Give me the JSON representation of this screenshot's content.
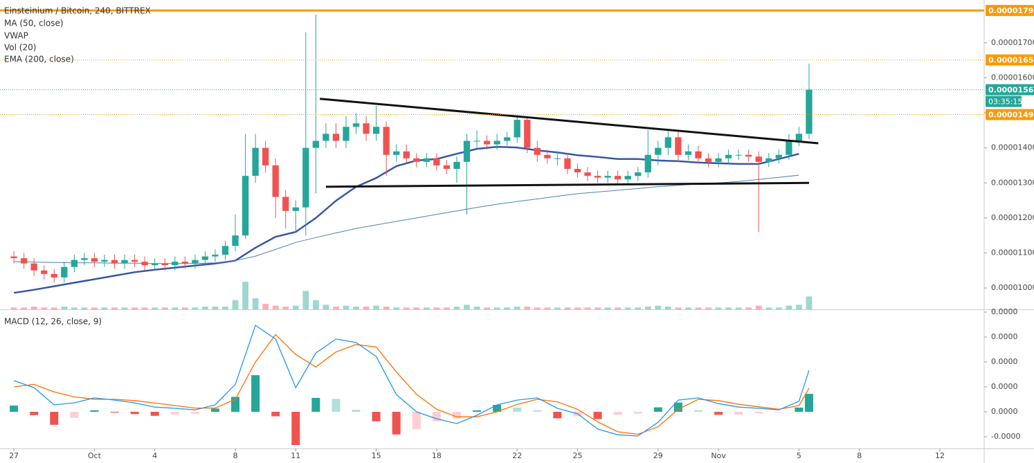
{
  "chart_data": [
    {
      "type": "candlestick",
      "title": "Einsteinium / Bitcoin, 240, BITTREX",
      "legend": [
        "MA (50, close)",
        "VWAP",
        "Vol (20)",
        "EMA (200, close)"
      ],
      "xlim": [
        -0.69,
        48.2
      ],
      "ylim": [
        9.39e-06,
        1.822e-05
      ],
      "yticks": [
        {
          "value": 1e-05,
          "label": "0.00001000"
        },
        {
          "value": 1.1e-05,
          "label": "0.00001100"
        },
        {
          "value": 1.2e-05,
          "label": "0.00001200"
        },
        {
          "value": 1.3e-05,
          "label": "0.00001300"
        },
        {
          "value": 1.4e-05,
          "label": "0.00001400"
        },
        {
          "value": 1.5e-05,
          "label": "0.00001500"
        },
        {
          "value": 1.6e-05,
          "label": "0.00001600"
        },
        {
          "value": 1.7e-05,
          "label": "0.00001700"
        }
      ],
      "up_color": "#26a69a",
      "down_color": "#ef5350",
      "x": [
        0,
        0.5,
        1,
        1.5,
        2,
        2.5,
        3,
        3.5,
        4,
        4.5,
        5,
        5.5,
        6,
        6.5,
        7,
        7.5,
        8,
        8.5,
        9,
        9.5,
        10,
        10.5,
        11,
        11.5,
        12,
        12.5,
        13,
        13.5,
        14,
        14.5,
        15,
        15.5,
        16,
        16.5,
        17,
        17.5,
        18,
        18.5,
        19,
        19.5,
        20,
        20.5,
        21,
        21.5,
        22,
        22.5,
        23,
        23.5,
        24,
        24.5,
        25,
        25.5,
        26,
        26.5,
        27,
        27.5,
        28,
        28.5,
        29,
        29.5,
        30,
        30.5,
        31,
        31.5,
        32,
        32.5,
        33,
        33.5,
        34,
        34.5,
        35,
        35.5,
        36,
        36.5,
        37,
        37.5,
        38,
        38.5,
        39,
        39.5
      ],
      "open": [
        1.09e-05,
        1.085e-05,
        1.07e-05,
        1.05e-05,
        1.04e-05,
        1.03e-05,
        1.06e-05,
        1.08e-05,
        1.085e-05,
        1.075e-05,
        1.08e-05,
        1.07e-05,
        1.08e-05,
        1.075e-05,
        1.065e-05,
        1.07e-05,
        1.065e-05,
        1.075e-05,
        1.07e-05,
        1.08e-05,
        1.09e-05,
        1.095e-05,
        1.12e-05,
        1.15e-05,
        1.32e-05,
        1.4e-05,
        1.35e-05,
        1.26e-05,
        1.22e-05,
        1.23e-05,
        1.4e-05,
        1.42e-05,
        1.44e-05,
        1.42e-05,
        1.46e-05,
        1.47e-05,
        1.44e-05,
        1.46e-05,
        1.38e-05,
        1.39e-05,
        1.37e-05,
        1.36e-05,
        1.37e-05,
        1.35e-05,
        1.34e-05,
        1.36e-05,
        1.42e-05,
        1.42e-05,
        1.41e-05,
        1.42e-05,
        1.43e-05,
        1.48e-05,
        1.4e-05,
        1.38e-05,
        1.37e-05,
        1.37e-05,
        1.34e-05,
        1.33e-05,
        1.32e-05,
        1.315e-05,
        1.32e-05,
        1.31e-05,
        1.32e-05,
        1.33e-05,
        1.38e-05,
        1.4e-05,
        1.43e-05,
        1.38e-05,
        1.39e-05,
        1.37e-05,
        1.36e-05,
        1.37e-05,
        1.38e-05,
        1.38e-05,
        1.375e-05,
        1.36e-05,
        1.37e-05,
        1.38e-05,
        1.42e-05,
        1.44e-05
      ],
      "high": [
        1.105e-05,
        1.1e-05,
        1.085e-05,
        1.065e-05,
        1.055e-05,
        1.075e-05,
        1.095e-05,
        1.1e-05,
        1.1e-05,
        1.095e-05,
        1.095e-05,
        1.095e-05,
        1.095e-05,
        1.09e-05,
        1.085e-05,
        1.085e-05,
        1.09e-05,
        1.09e-05,
        1.095e-05,
        1.105e-05,
        1.11e-05,
        1.135e-05,
        1.21e-05,
        1.44e-05,
        1.44e-05,
        1.42e-05,
        1.37e-05,
        1.28e-05,
        1.25e-05,
        1.73e-05,
        1.78e-05,
        1.47e-05,
        1.47e-05,
        1.49e-05,
        1.5e-05,
        1.49e-05,
        1.52e-05,
        1.475e-05,
        1.41e-05,
        1.41e-05,
        1.385e-05,
        1.385e-05,
        1.385e-05,
        1.365e-05,
        1.375e-05,
        1.44e-05,
        1.45e-05,
        1.435e-05,
        1.44e-05,
        1.445e-05,
        1.49e-05,
        1.49e-05,
        1.42e-05,
        1.395e-05,
        1.39e-05,
        1.385e-05,
        1.355e-05,
        1.345e-05,
        1.335e-05,
        1.335e-05,
        1.335e-05,
        1.335e-05,
        1.345e-05,
        1.45e-05,
        1.42e-05,
        1.45e-05,
        1.445e-05,
        1.41e-05,
        1.405e-05,
        1.385e-05,
        1.385e-05,
        1.395e-05,
        1.395e-05,
        1.395e-05,
        1.39e-05,
        1.385e-05,
        1.395e-05,
        1.44e-05,
        1.46e-05,
        1.64e-05
      ],
      "low": [
        1.07e-05,
        1.055e-05,
        1.035e-05,
        1.025e-05,
        1.015e-05,
        1.015e-05,
        1.045e-05,
        1.065e-05,
        1.06e-05,
        1.06e-05,
        1.055e-05,
        1.055e-05,
        1.06e-05,
        1.05e-05,
        1.05e-05,
        1.05e-05,
        1.05e-05,
        1.055e-05,
        1.055e-05,
        1.065e-05,
        1.075e-05,
        1.08e-05,
        1.105e-05,
        1.14e-05,
        1.3e-05,
        1.33e-05,
        1.2e-05,
        1.17e-05,
        1.16e-05,
        1.15e-05,
        1.27e-05,
        1.4e-05,
        1.4e-05,
        1.4e-05,
        1.44e-05,
        1.42e-05,
        1.42e-05,
        1.32e-05,
        1.36e-05,
        1.355e-05,
        1.345e-05,
        1.345e-05,
        1.335e-05,
        1.325e-05,
        1.3e-05,
        1.21e-05,
        1.4e-05,
        1.395e-05,
        1.395e-05,
        1.405e-05,
        1.415e-05,
        1.385e-05,
        1.36e-05,
        1.355e-05,
        1.35e-05,
        1.325e-05,
        1.315e-05,
        1.305e-05,
        1.3e-05,
        1.3e-05,
        1.295e-05,
        1.295e-05,
        1.305e-05,
        1.315e-05,
        1.35e-05,
        1.38e-05,
        1.36e-05,
        1.365e-05,
        1.355e-05,
        1.345e-05,
        1.345e-05,
        1.355e-05,
        1.365e-05,
        1.36e-05,
        1.16e-05,
        1.345e-05,
        1.355e-05,
        1.365e-05,
        1.405e-05,
        1.425e-05
      ],
      "close": [
        1.085e-05,
        1.07e-05,
        1.05e-05,
        1.04e-05,
        1.03e-05,
        1.06e-05,
        1.08e-05,
        1.085e-05,
        1.075e-05,
        1.08e-05,
        1.07e-05,
        1.08e-05,
        1.075e-05,
        1.065e-05,
        1.07e-05,
        1.065e-05,
        1.075e-05,
        1.07e-05,
        1.08e-05,
        1.09e-05,
        1.095e-05,
        1.12e-05,
        1.15e-05,
        1.32e-05,
        1.4e-05,
        1.35e-05,
        1.26e-05,
        1.22e-05,
        1.23e-05,
        1.4e-05,
        1.42e-05,
        1.44e-05,
        1.42e-05,
        1.46e-05,
        1.47e-05,
        1.44e-05,
        1.46e-05,
        1.38e-05,
        1.39e-05,
        1.37e-05,
        1.36e-05,
        1.37e-05,
        1.35e-05,
        1.34e-05,
        1.36e-05,
        1.42e-05,
        1.42e-05,
        1.41e-05,
        1.42e-05,
        1.43e-05,
        1.48e-05,
        1.4e-05,
        1.38e-05,
        1.37e-05,
        1.37e-05,
        1.34e-05,
        1.33e-05,
        1.32e-05,
        1.315e-05,
        1.32e-05,
        1.31e-05,
        1.32e-05,
        1.33e-05,
        1.38e-05,
        1.4e-05,
        1.43e-05,
        1.38e-05,
        1.39e-05,
        1.37e-05,
        1.36e-05,
        1.37e-05,
        1.38e-05,
        1.38e-05,
        1.375e-05,
        1.36e-05,
        1.37e-05,
        1.38e-05,
        1.42e-05,
        1.44e-05,
        1.566e-05
      ],
      "volume": [
        2,
        2,
        3,
        2,
        2,
        3,
        2,
        2,
        2,
        2,
        2,
        2,
        2,
        2,
        2,
        2,
        2,
        2,
        2,
        3,
        3,
        3,
        10,
        30,
        12,
        6,
        4,
        3,
        4,
        20,
        10,
        5,
        3,
        4,
        3,
        3,
        4,
        3,
        2,
        2,
        2,
        2,
        2,
        2,
        3,
        5,
        3,
        2,
        2,
        2,
        3,
        3,
        2,
        2,
        2,
        2,
        2,
        2,
        2,
        2,
        2,
        2,
        2,
        3,
        4,
        3,
        2,
        2,
        2,
        2,
        2,
        2,
        2,
        2,
        4,
        2,
        2,
        4,
        5,
        14
      ],
      "lines": [
        {
          "color": "#3656a5",
          "width": 2.5,
          "x": [
            0,
            1,
            2,
            3,
            4,
            5,
            6,
            7,
            8,
            9,
            10,
            11,
            12,
            13,
            14,
            15,
            16,
            17,
            18,
            19,
            20,
            21,
            22,
            23,
            24,
            25,
            26,
            27,
            28,
            29,
            30,
            31,
            32,
            33,
            34,
            35,
            36,
            37,
            38,
            39
          ],
          "values": [
            9.86e-06,
            9.95e-06,
            1.005e-05,
            1.015e-05,
            1.025e-05,
            1.035e-05,
            1.045e-05,
            1.052e-05,
            1.058e-05,
            1.064e-05,
            1.07e-05,
            1.078e-05,
            1.115e-05,
            1.146e-05,
            1.16e-05,
            1.2e-05,
            1.249e-05,
            1.289e-05,
            1.314e-05,
            1.348e-05,
            1.364e-05,
            1.368e-05,
            1.383e-05,
            1.397e-05,
            1.403e-05,
            1.401e-05,
            1.393e-05,
            1.387e-05,
            1.379e-05,
            1.374e-05,
            1.368e-05,
            1.368e-05,
            1.364e-05,
            1.362e-05,
            1.358e-05,
            1.356e-05,
            1.354e-05,
            1.354e-05,
            1.368e-05,
            1.383e-05
          ]
        },
        {
          "color": "#4a82b0",
          "width": 1,
          "x": [
            0,
            1,
            2,
            3,
            4,
            5,
            6,
            7,
            8,
            9,
            10,
            11,
            12,
            13,
            14,
            15,
            16,
            17,
            18,
            19,
            20,
            21,
            22,
            23,
            24,
            25,
            26,
            27,
            28,
            29,
            30,
            31,
            32,
            33,
            34,
            35,
            36,
            37,
            38,
            39
          ],
          "values": [
            1.075e-05,
            1.074e-05,
            1.073e-05,
            1.072e-05,
            1.072e-05,
            1.071e-05,
            1.071e-05,
            1.07e-05,
            1.07e-05,
            1.07e-05,
            1.072e-05,
            1.078e-05,
            1.091e-05,
            1.11e-05,
            1.13e-05,
            1.144e-05,
            1.157e-05,
            1.17e-05,
            1.18e-05,
            1.19e-05,
            1.2e-05,
            1.21e-05,
            1.22e-05,
            1.23e-05,
            1.239e-05,
            1.247e-05,
            1.254e-05,
            1.262e-05,
            1.269e-05,
            1.274e-05,
            1.279e-05,
            1.284e-05,
            1.289e-05,
            1.293e-05,
            1.297e-05,
            1.3e-05,
            1.304e-05,
            1.31e-05,
            1.316e-05,
            1.322e-05
          ]
        }
      ],
      "trendlines": [
        {
          "x": [
            15.2,
            39.96
          ],
          "y": [
            1.54e-05,
            1.413e-05
          ]
        },
        {
          "x": [
            15.5,
            39.5
          ],
          "y": [
            1.289e-05,
            1.3e-05
          ]
        }
      ],
      "levels": [
        {
          "value": 1.792e-05,
          "color": "#ff9800",
          "style": "solid"
        },
        {
          "value": 1.651e-05,
          "color": "#ff9800",
          "style": "dotted"
        },
        {
          "value": 1.566e-05,
          "color": "#26a69a",
          "style": "dotted"
        },
        {
          "value": 1.495e-05,
          "color": "#ff9800",
          "style": "dotted"
        }
      ],
      "countdown": "03:35:15"
    },
    {
      "type": "macd",
      "title": "MACD (12, 26, close, 9)",
      "xlim": [
        -0.69,
        48.2
      ],
      "xticks": [
        {
          "value": 0,
          "label": "27"
        },
        {
          "value": 4,
          "label": "Oct"
        },
        {
          "value": 7,
          "label": "4"
        },
        {
          "value": 11,
          "label": "8"
        },
        {
          "value": 14,
          "label": "11"
        },
        {
          "value": 18,
          "label": "15"
        },
        {
          "value": 21,
          "label": "18"
        },
        {
          "value": 25,
          "label": "22"
        },
        {
          "value": 28,
          "label": "25"
        },
        {
          "value": 32,
          "label": "29"
        },
        {
          "value": 35,
          "label": "Nov"
        },
        {
          "value": 39,
          "label": "5"
        },
        {
          "value": 42,
          "label": "8"
        },
        {
          "value": 46,
          "label": "12"
        }
      ],
      "ylim": [
        -1.47e-07,
        4.11e-07
      ],
      "yticks": [
        {
          "value": 4e-07,
          "label": "0.0000"
        },
        {
          "value": 3e-07,
          "label": "0.0000"
        },
        {
          "value": 2e-07,
          "label": "0.0000"
        },
        {
          "value": 1e-07,
          "label": "0.0000"
        },
        {
          "value": 0,
          "label": "0.0000"
        },
        {
          "value": -1e-07,
          "label": "-0.0000"
        }
      ],
      "x": [
        0,
        1,
        2,
        3,
        4,
        5,
        6,
        7,
        8,
        9,
        10,
        11,
        12,
        13,
        14,
        15,
        16,
        17,
        18,
        19,
        20,
        21,
        22,
        23,
        24,
        25,
        26,
        27,
        28,
        29,
        30,
        31,
        32,
        33,
        34,
        35,
        36,
        37,
        38,
        39,
        39.5
      ],
      "macd": {
        "color": "#2196f3",
        "values": [
          1.25e-07,
          9.7e-08,
          2.8e-08,
          3.6e-08,
          5.6e-08,
          4.7e-08,
          3.6e-08,
          1.9e-08,
          1.4e-08,
          8e-09,
          2.8e-08,
          1.1e-07,
          3.47e-07,
          2.92e-07,
          9.7e-08,
          2.36e-07,
          2.92e-07,
          2.78e-07,
          2.22e-07,
          6.9e-08,
          0,
          -2.8e-08,
          -4.7e-08,
          -1.4e-08,
          2.8e-08,
          4.7e-08,
          5.6e-08,
          1.4e-08,
          -8e-09,
          -6.9e-08,
          -9.2e-08,
          -9.7e-08,
          -4.2e-08,
          4.7e-08,
          5.6e-08,
          3.3e-08,
          1.9e-08,
          1.4e-08,
          8e-09,
          4.2e-08,
          1.67e-07
        ]
      },
      "signal": {
        "color": "#ff6d00",
        "values": [
          1e-07,
          1.1e-07,
          8e-08,
          6e-08,
          5e-08,
          5e-08,
          4.5e-08,
          3.5e-08,
          2.5e-08,
          1.5e-08,
          1.5e-08,
          5e-08,
          2e-07,
          3.1e-07,
          2.3e-07,
          1.8e-07,
          2.4e-07,
          2.7e-07,
          2.6e-07,
          1.6e-07,
          7e-08,
          1e-08,
          -2e-08,
          -2e-08,
          0,
          3e-08,
          5e-08,
          4e-08,
          1e-08,
          -4e-08,
          -8e-08,
          -9e-08,
          -6e-08,
          1e-08,
          5e-08,
          4.5e-08,
          3e-08,
          2e-08,
          1e-08,
          2.5e-08,
          9.5e-08
        ]
      },
      "histogram": {
        "colors": [
          "#26a69a",
          "#b2dfdb",
          "#ef5350",
          "#ffcdd2"
        ],
        "values": [
          2.5e-08,
          -1.3e-08,
          -5.2e-08,
          -2.4e-08,
          6e-09,
          -3e-09,
          -9e-09,
          -1.6e-08,
          -1.1e-08,
          -7e-09,
          1.3e-08,
          6e-08,
          1.47e-07,
          -1.8e-08,
          -1.33e-07,
          5.6e-08,
          5.2e-08,
          8e-09,
          -3.8e-08,
          -9.1e-08,
          -7e-08,
          -3.8e-08,
          -2.7e-08,
          6e-09,
          2.8e-08,
          1.7e-08,
          6e-09,
          -2.6e-08,
          -1.8e-08,
          -2.9e-08,
          -1.2e-08,
          -7e-09,
          1.8e-08,
          3.7e-08,
          6e-09,
          -1.2e-08,
          -1.1e-08,
          -6e-09,
          -2e-09,
          1.7e-08,
          7.2e-08
        ]
      }
    }
  ]
}
